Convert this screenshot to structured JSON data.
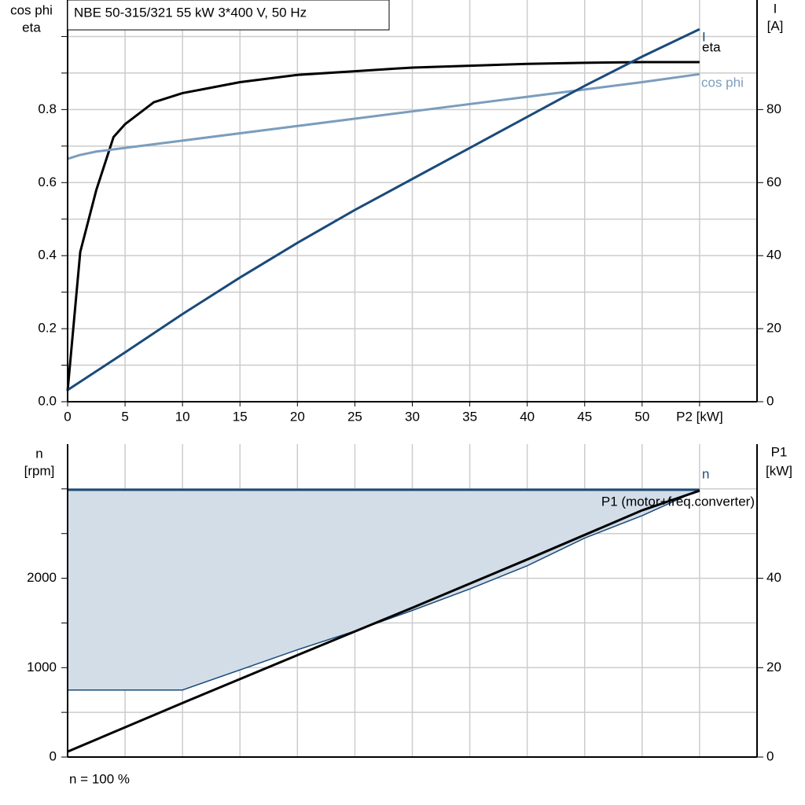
{
  "chart_data": [
    {
      "type": "line",
      "title": "NBE 50-315/321   55 kW   3*400 V, 50 Hz",
      "ylabel": [
        "cos phi",
        "eta"
      ],
      "y2label": [
        "I",
        "[A]"
      ],
      "xlim": [
        0,
        60
      ],
      "xticks": [
        {
          "value": 0,
          "label": "0"
        },
        5,
        10,
        15,
        20,
        25,
        30,
        35,
        40,
        45,
        50,
        {
          "value": 55,
          "label": "P2 [kW]"
        }
      ],
      "ylim": [
        0,
        1.1
      ],
      "yticks": [
        {
          "value": 0,
          "label": "0.0"
        },
        0.2,
        0.4,
        0.6,
        0.8
      ],
      "ygrid": [
        0.1,
        0.3,
        0.5,
        0.7,
        0.9,
        1.0
      ],
      "y2lim": [
        0,
        110
      ],
      "y2ticks": [
        0,
        20,
        40,
        60,
        80
      ],
      "grid": true,
      "series": [
        {
          "name": "eta",
          "color": "#000000",
          "x": [
            0,
            1.1,
            2.5,
            4,
            5,
            7.5,
            10,
            15,
            20,
            25,
            30,
            35,
            40,
            45,
            50,
            55
          ],
          "values": [
            0.03,
            0.41,
            0.58,
            0.725,
            0.76,
            0.82,
            0.845,
            0.875,
            0.895,
            0.905,
            0.915,
            0.92,
            0.925,
            0.928,
            0.93,
            0.93
          ]
        },
        {
          "name": "cos phi",
          "color": "#7b9dbd",
          "x": [
            0,
            1,
            2.5,
            5,
            10,
            20,
            30,
            40,
            50,
            55
          ],
          "values": [
            0.665,
            0.675,
            0.685,
            0.695,
            0.715,
            0.755,
            0.795,
            0.835,
            0.875,
            0.897
          ]
        },
        {
          "name": "I",
          "color": "#1a4a7a",
          "axis": "y2",
          "x": [
            0,
            5,
            10,
            15,
            20,
            25,
            30,
            35,
            40,
            45,
            50,
            55
          ],
          "values": [
            3.2,
            13.5,
            24,
            34,
            43.5,
            52.5,
            61,
            69.5,
            78,
            86.5,
            94.5,
            102
          ]
        }
      ]
    },
    {
      "type": "line",
      "ylabel": [
        "n",
        "[rpm]"
      ],
      "y2label": [
        "P1",
        "[kW]"
      ],
      "note": "n = 100 %",
      "xlim": [
        0,
        60
      ],
      "xgrid": [
        5,
        10,
        15,
        20,
        25,
        30,
        35,
        40,
        45,
        50,
        55
      ],
      "ylim": [
        0,
        3500
      ],
      "yticks": [
        0,
        1000,
        2000
      ],
      "ygrid": [
        500,
        1500,
        2500,
        3000
      ],
      "y2lim": [
        0,
        70
      ],
      "y2ticks": [
        0,
        20,
        40
      ],
      "grid": true,
      "band": {
        "color": "#1a4a7a",
        "fill": "#d2dde8",
        "x": [
          0,
          10,
          20,
          25,
          30,
          35,
          40,
          45,
          50,
          55
        ],
        "values": [
          750,
          750,
          1200,
          1410,
          1640,
          1880,
          2140,
          2450,
          2700,
          2990
        ]
      },
      "series": [
        {
          "name": "n",
          "color": "#1a4a7a",
          "x": [
            0,
            55
          ],
          "values": [
            2990,
            2990
          ]
        },
        {
          "name": "P1 (motor+freq.converter)",
          "color": "#000000",
          "axis": "y2",
          "x": [
            0,
            10,
            20,
            30,
            40,
            50,
            55
          ],
          "values": [
            1.2,
            12.1,
            22.8,
            33.4,
            44.2,
            55.2,
            59.6
          ]
        }
      ]
    }
  ]
}
